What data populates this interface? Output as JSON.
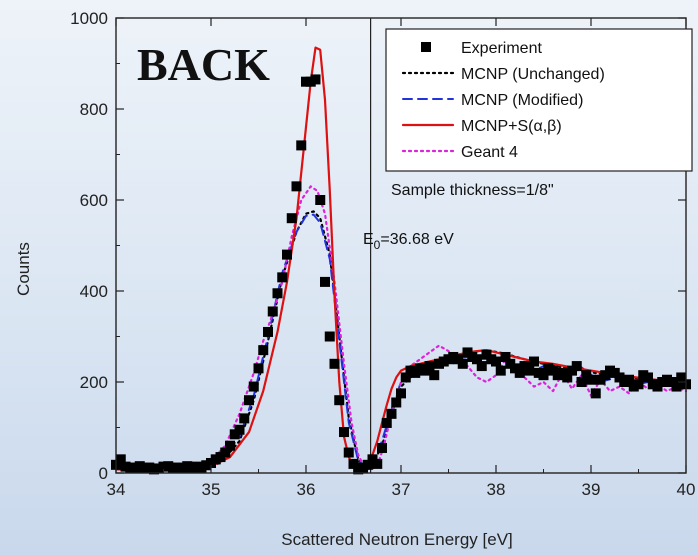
{
  "chart_data": {
    "type": "line",
    "title": "BACK",
    "xlabel": "Scattered Neutron Energy [eV]",
    "ylabel": "Counts",
    "xlim": [
      34,
      40
    ],
    "ylim": [
      0,
      1000
    ],
    "xticks": [
      34,
      35,
      36,
      37,
      38,
      39,
      40
    ],
    "yticks": [
      0,
      200,
      400,
      600,
      800,
      1000
    ],
    "legend_position": "top-right",
    "annotations": {
      "sample": "Sample thickness=1/8\"",
      "e0_main": "E",
      "e0_sub": "0",
      "e0_value": "=36.68 eV",
      "e0_x": 36.68
    },
    "series": [
      {
        "name": "Experiment",
        "style": "markers",
        "color": "#000000",
        "x": [
          34.0,
          34.05,
          34.1,
          34.15,
          34.2,
          34.25,
          34.3,
          34.35,
          34.4,
          34.45,
          34.5,
          34.55,
          34.6,
          34.65,
          34.7,
          34.75,
          34.8,
          34.85,
          34.9,
          34.95,
          35.0,
          35.05,
          35.1,
          35.15,
          35.2,
          35.25,
          35.3,
          35.35,
          35.4,
          35.45,
          35.5,
          35.55,
          35.6,
          35.65,
          35.7,
          35.75,
          35.8,
          35.85,
          35.9,
          35.95,
          36.0,
          36.05,
          36.1,
          36.15,
          36.2,
          36.25,
          36.3,
          36.35,
          36.4,
          36.45,
          36.5,
          36.55,
          36.6,
          36.65,
          36.7,
          36.75,
          36.8,
          36.85,
          36.9,
          36.95,
          37.0,
          37.05,
          37.1,
          37.15,
          37.2,
          37.25,
          37.3,
          37.35,
          37.4,
          37.45,
          37.5,
          37.55,
          37.6,
          37.65,
          37.7,
          37.75,
          37.8,
          37.85,
          37.9,
          37.95,
          38.0,
          38.05,
          38.1,
          38.15,
          38.2,
          38.25,
          38.3,
          38.35,
          38.4,
          38.45,
          38.5,
          38.55,
          38.6,
          38.65,
          38.7,
          38.75,
          38.8,
          38.85,
          38.9,
          38.95,
          39.0,
          39.05,
          39.1,
          39.15,
          39.2,
          39.25,
          39.3,
          39.35,
          39.4,
          39.45,
          39.5,
          39.55,
          39.6,
          39.65,
          39.7,
          39.75,
          39.8,
          39.85,
          39.9,
          39.95,
          40.0
        ],
        "y": [
          18,
          30,
          14,
          12,
          10,
          15,
          10,
          12,
          8,
          10,
          14,
          15,
          10,
          12,
          11,
          15,
          12,
          14,
          12,
          17,
          22,
          30,
          35,
          45,
          60,
          85,
          95,
          120,
          160,
          190,
          230,
          270,
          310,
          355,
          395,
          430,
          480,
          560,
          630,
          720,
          860,
          860,
          865,
          600,
          420,
          300,
          240,
          160,
          90,
          45,
          20,
          8,
          12,
          18,
          30,
          20,
          55,
          110,
          130,
          155,
          175,
          210,
          225,
          220,
          230,
          225,
          235,
          215,
          240,
          245,
          250,
          255,
          250,
          240,
          265,
          255,
          250,
          235,
          260,
          250,
          245,
          225,
          255,
          240,
          230,
          220,
          235,
          225,
          245,
          220,
          215,
          230,
          225,
          215,
          220,
          210,
          225,
          235,
          200,
          215,
          205,
          175,
          205,
          215,
          225,
          220,
          210,
          200,
          205,
          190,
          195,
          215,
          210,
          195,
          190,
          200,
          205,
          200,
          190,
          210,
          195
        ]
      },
      {
        "name": "MCNP (Unchanged)",
        "style": "dotted",
        "color": "#000000",
        "x": [
          34.0,
          34.3,
          34.6,
          34.9,
          35.1,
          35.3,
          35.45,
          35.6,
          35.75,
          35.9,
          36.0,
          36.08,
          36.15,
          36.25,
          36.35,
          36.45,
          36.55,
          36.62,
          36.7,
          36.8,
          36.9,
          37.0,
          37.15,
          37.3,
          37.5,
          37.7,
          37.9,
          38.1,
          38.3,
          38.5,
          38.7,
          38.9,
          39.1,
          39.3,
          39.5,
          39.7,
          39.9,
          40.0
        ],
        "y": [
          10,
          10,
          10,
          12,
          22,
          70,
          160,
          290,
          430,
          530,
          570,
          575,
          560,
          480,
          300,
          120,
          30,
          10,
          18,
          60,
          130,
          190,
          220,
          240,
          255,
          265,
          270,
          262,
          250,
          240,
          232,
          225,
          218,
          213,
          208,
          204,
          200,
          198
        ]
      },
      {
        "name": "MCNP (Modified)",
        "style": "dashed",
        "color": "#2233dd",
        "x": [
          34.0,
          34.3,
          34.6,
          34.9,
          35.1,
          35.3,
          35.45,
          35.6,
          35.75,
          35.9,
          36.0,
          36.08,
          36.15,
          36.25,
          36.35,
          36.45,
          36.55,
          36.62,
          36.7,
          36.8,
          36.9,
          37.0,
          37.15,
          37.3,
          37.5,
          37.7,
          37.9,
          38.1,
          38.3,
          38.5,
          38.7,
          38.9,
          39.1,
          39.3,
          39.5,
          39.7,
          39.9,
          40.0
        ],
        "y": [
          10,
          10,
          10,
          12,
          25,
          80,
          170,
          300,
          440,
          530,
          565,
          568,
          550,
          470,
          290,
          110,
          28,
          12,
          20,
          70,
          140,
          200,
          225,
          240,
          250,
          255,
          260,
          245,
          215,
          235,
          205,
          232,
          200,
          212,
          195,
          205,
          193,
          190
        ]
      },
      {
        "name": "MCNP+S(α,β)",
        "style": "solid",
        "color": "#dd1111",
        "x": [
          34.0,
          34.4,
          34.8,
          35.0,
          35.2,
          35.4,
          35.55,
          35.7,
          35.8,
          35.9,
          35.98,
          36.05,
          36.1,
          36.15,
          36.2,
          36.25,
          36.3,
          36.35,
          36.4,
          36.45,
          36.5,
          36.55,
          36.6,
          36.65,
          36.7,
          36.75,
          36.8,
          36.85,
          36.9,
          36.95,
          37.0,
          37.1,
          37.2,
          37.3,
          37.4,
          37.5,
          37.6,
          37.7,
          37.8,
          37.9,
          38.0,
          38.2,
          38.4,
          38.6,
          38.8,
          39.0,
          39.2,
          39.4,
          39.6,
          39.8,
          40.0
        ],
        "y": [
          8,
          8,
          10,
          15,
          35,
          90,
          180,
          310,
          420,
          560,
          720,
          860,
          935,
          930,
          820,
          620,
          390,
          200,
          80,
          35,
          15,
          8,
          10,
          20,
          40,
          70,
          110,
          150,
          185,
          210,
          225,
          235,
          240,
          245,
          250,
          255,
          260,
          265,
          268,
          270,
          265,
          255,
          245,
          240,
          232,
          225,
          218,
          212,
          207,
          202,
          198
        ]
      },
      {
        "name": "Geant 4",
        "style": "dotted",
        "color": "#dd22dd",
        "x": [
          34.0,
          34.4,
          34.8,
          35.0,
          35.15,
          35.3,
          35.45,
          35.55,
          35.65,
          35.75,
          35.85,
          35.95,
          36.05,
          36.12,
          36.2,
          36.3,
          36.4,
          36.48,
          36.55,
          36.62,
          36.68,
          36.75,
          36.82,
          36.9,
          37.0,
          37.1,
          37.2,
          37.3,
          37.4,
          37.5,
          37.6,
          37.7,
          37.8,
          37.9,
          38.0,
          38.1,
          38.2,
          38.3,
          38.4,
          38.5,
          38.6,
          38.7,
          38.8,
          38.9,
          39.0,
          39.1,
          39.2,
          39.3,
          39.4,
          39.5,
          39.6,
          39.7,
          39.8,
          39.9,
          40.0
        ],
        "y": [
          8,
          8,
          12,
          25,
          60,
          130,
          220,
          290,
          350,
          420,
          520,
          600,
          630,
          620,
          570,
          420,
          240,
          110,
          40,
          10,
          8,
          15,
          60,
          130,
          200,
          235,
          250,
          265,
          280,
          268,
          250,
          235,
          210,
          200,
          215,
          250,
          230,
          210,
          190,
          200,
          180,
          220,
          185,
          215,
          170,
          205,
          180,
          190,
          175,
          200,
          185,
          195,
          180,
          190,
          180
        ]
      }
    ]
  }
}
